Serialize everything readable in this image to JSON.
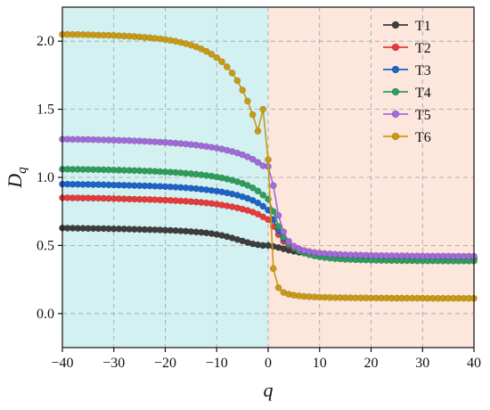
{
  "chart_data": {
    "type": "line",
    "title": "",
    "xlabel": "q",
    "ylabel": "D",
    "ylabel_subscript": "q",
    "xlim": [
      -40,
      40
    ],
    "ylim": [
      -0.25,
      2.25
    ],
    "xticks": [
      -40,
      -30,
      -20,
      -10,
      0,
      10,
      20,
      30,
      40
    ],
    "xtick_labels": [
      "−40",
      "−30",
      "−20",
      "−10",
      "0",
      "10",
      "20",
      "30",
      "40"
    ],
    "yticks": [
      0.0,
      0.5,
      1.0,
      1.5,
      2.0
    ],
    "ytick_labels": [
      "0.0",
      "0.5",
      "1.0",
      "1.5",
      "2.0"
    ],
    "grid": true,
    "legend_position": "top-right",
    "background_regions": [
      {
        "x_from": -40,
        "x_to": 0,
        "color": "#d4f1f1"
      },
      {
        "x_from": 0,
        "x_to": 40,
        "color": "#fde6dc"
      }
    ],
    "x": [
      -40,
      -39,
      -38,
      -37,
      -36,
      -35,
      -34,
      -33,
      -32,
      -31,
      -30,
      -29,
      -28,
      -27,
      -26,
      -25,
      -24,
      -23,
      -22,
      -21,
      -20,
      -19,
      -18,
      -17,
      -16,
      -15,
      -14,
      -13,
      -12,
      -11,
      -10,
      -9,
      -8,
      -7,
      -6,
      -5,
      -4,
      -3,
      -2,
      -1,
      0,
      1,
      2,
      3,
      4,
      5,
      6,
      7,
      8,
      9,
      10,
      11,
      12,
      13,
      14,
      15,
      16,
      17,
      18,
      19,
      20,
      21,
      22,
      23,
      24,
      25,
      26,
      27,
      28,
      29,
      30,
      31,
      32,
      33,
      34,
      35,
      36,
      37,
      38,
      39,
      40
    ],
    "series": [
      {
        "name": "T1",
        "color": "#3d3d3d",
        "values": [
          0.628,
          0.627,
          0.627,
          0.626,
          0.626,
          0.625,
          0.625,
          0.624,
          0.624,
          0.623,
          0.622,
          0.622,
          0.621,
          0.62,
          0.619,
          0.618,
          0.617,
          0.616,
          0.615,
          0.614,
          0.612,
          0.611,
          0.609,
          0.607,
          0.605,
          0.602,
          0.599,
          0.596,
          0.592,
          0.587,
          0.581,
          0.574,
          0.565,
          0.555,
          0.544,
          0.533,
          0.522,
          0.512,
          0.505,
          0.5,
          0.5,
          0.493,
          0.485,
          0.475,
          0.465,
          0.457,
          0.45,
          0.444,
          0.439,
          0.435,
          0.431,
          0.428,
          0.425,
          0.423,
          0.421,
          0.419,
          0.417,
          0.416,
          0.415,
          0.414,
          0.413,
          0.412,
          0.411,
          0.411,
          0.41,
          0.41,
          0.409,
          0.409,
          0.408,
          0.408,
          0.408,
          0.407,
          0.407,
          0.407,
          0.407,
          0.406,
          0.406,
          0.406,
          0.406,
          0.406,
          0.406
        ]
      },
      {
        "name": "T2",
        "color": "#e83a3a",
        "values": [
          0.85,
          0.85,
          0.849,
          0.849,
          0.848,
          0.848,
          0.847,
          0.847,
          0.846,
          0.845,
          0.844,
          0.843,
          0.842,
          0.841,
          0.84,
          0.839,
          0.838,
          0.837,
          0.836,
          0.834,
          0.833,
          0.831,
          0.829,
          0.827,
          0.825,
          0.822,
          0.819,
          0.816,
          0.812,
          0.808,
          0.803,
          0.797,
          0.791,
          0.784,
          0.776,
          0.767,
          0.757,
          0.745,
          0.73,
          0.71,
          0.69,
          0.64,
          0.58,
          0.53,
          0.5,
          0.478,
          0.462,
          0.45,
          0.441,
          0.434,
          0.429,
          0.424,
          0.421,
          0.418,
          0.416,
          0.414,
          0.412,
          0.411,
          0.41,
          0.409,
          0.408,
          0.407,
          0.406,
          0.405,
          0.404,
          0.404,
          0.403,
          0.403,
          0.402,
          0.402,
          0.402,
          0.401,
          0.401,
          0.401,
          0.401,
          0.4,
          0.4,
          0.4,
          0.4,
          0.4,
          0.4
        ]
      },
      {
        "name": "T3",
        "color": "#1f63c8",
        "values": [
          0.95,
          0.95,
          0.949,
          0.949,
          0.948,
          0.948,
          0.947,
          0.947,
          0.946,
          0.945,
          0.944,
          0.943,
          0.942,
          0.941,
          0.94,
          0.939,
          0.938,
          0.937,
          0.935,
          0.934,
          0.932,
          0.93,
          0.928,
          0.926,
          0.923,
          0.92,
          0.917,
          0.913,
          0.909,
          0.904,
          0.899,
          0.893,
          0.886,
          0.878,
          0.869,
          0.858,
          0.846,
          0.831,
          0.812,
          0.788,
          0.76,
          0.69,
          0.61,
          0.55,
          0.51,
          0.487,
          0.47,
          0.457,
          0.448,
          0.441,
          0.435,
          0.431,
          0.427,
          0.424,
          0.422,
          0.42,
          0.418,
          0.416,
          0.415,
          0.414,
          0.413,
          0.412,
          0.411,
          0.41,
          0.41,
          0.409,
          0.409,
          0.408,
          0.408,
          0.408,
          0.407,
          0.407,
          0.407,
          0.406,
          0.406,
          0.406,
          0.406,
          0.406,
          0.405,
          0.405,
          0.405
        ]
      },
      {
        "name": "T4",
        "color": "#2e9e5b",
        "values": [
          1.06,
          1.06,
          1.059,
          1.059,
          1.058,
          1.058,
          1.057,
          1.057,
          1.056,
          1.055,
          1.054,
          1.053,
          1.052,
          1.051,
          1.05,
          1.049,
          1.047,
          1.046,
          1.044,
          1.042,
          1.04,
          1.038,
          1.036,
          1.033,
          1.03,
          1.027,
          1.023,
          1.019,
          1.014,
          1.009,
          1.003,
          0.996,
          0.988,
          0.979,
          0.968,
          0.956,
          0.941,
          0.923,
          0.9,
          0.87,
          0.84,
          0.75,
          0.64,
          0.56,
          0.51,
          0.48,
          0.459,
          0.444,
          0.432,
          0.423,
          0.416,
          0.411,
          0.407,
          0.403,
          0.401,
          0.398,
          0.397,
          0.395,
          0.394,
          0.393,
          0.392,
          0.391,
          0.39,
          0.39,
          0.389,
          0.389,
          0.388,
          0.388,
          0.388,
          0.387,
          0.387,
          0.387,
          0.387,
          0.387,
          0.386,
          0.386,
          0.386,
          0.386,
          0.386,
          0.386,
          0.386
        ]
      },
      {
        "name": "T5",
        "color": "#a26bd9",
        "values": [
          1.28,
          1.28,
          1.279,
          1.279,
          1.278,
          1.278,
          1.277,
          1.276,
          1.275,
          1.274,
          1.273,
          1.272,
          1.271,
          1.27,
          1.268,
          1.267,
          1.265,
          1.263,
          1.261,
          1.259,
          1.257,
          1.254,
          1.251,
          1.248,
          1.245,
          1.241,
          1.237,
          1.232,
          1.227,
          1.221,
          1.215,
          1.208,
          1.199,
          1.19,
          1.179,
          1.166,
          1.151,
          1.133,
          1.11,
          1.085,
          1.08,
          0.94,
          0.72,
          0.6,
          0.53,
          0.495,
          0.476,
          0.463,
          0.455,
          0.449,
          0.444,
          0.441,
          0.438,
          0.436,
          0.434,
          0.432,
          0.431,
          0.43,
          0.429,
          0.428,
          0.427,
          0.426,
          0.426,
          0.425,
          0.425,
          0.424,
          0.424,
          0.424,
          0.423,
          0.423,
          0.423,
          0.422,
          0.422,
          0.422,
          0.422,
          0.422,
          0.421,
          0.421,
          0.421,
          0.421,
          0.421
        ]
      },
      {
        "name": "T6",
        "color": "#c99a14",
        "values": [
          2.05,
          2.05,
          2.049,
          2.049,
          2.048,
          2.047,
          2.046,
          2.045,
          2.044,
          2.043,
          2.042,
          2.04,
          2.038,
          2.036,
          2.034,
          2.031,
          2.028,
          2.025,
          2.021,
          2.017,
          2.012,
          2.006,
          1.999,
          1.991,
          1.982,
          1.971,
          1.958,
          1.943,
          1.925,
          1.904,
          1.879,
          1.849,
          1.812,
          1.766,
          1.71,
          1.641,
          1.56,
          1.46,
          1.34,
          1.5,
          1.13,
          0.33,
          0.19,
          0.155,
          0.142,
          0.135,
          0.13,
          0.126,
          0.124,
          0.122,
          0.12,
          0.119,
          0.118,
          0.117,
          0.117,
          0.116,
          0.116,
          0.115,
          0.115,
          0.115,
          0.114,
          0.114,
          0.114,
          0.114,
          0.113,
          0.113,
          0.113,
          0.113,
          0.113,
          0.113,
          0.113,
          0.112,
          0.112,
          0.112,
          0.112,
          0.112,
          0.112,
          0.112,
          0.112,
          0.112,
          0.112
        ]
      }
    ]
  }
}
